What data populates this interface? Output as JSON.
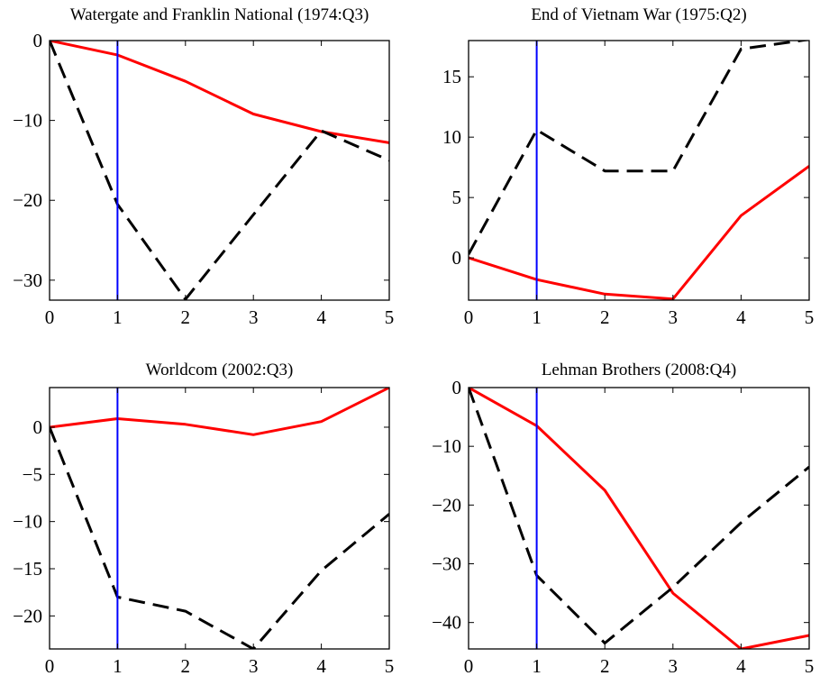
{
  "chart_data": [
    {
      "type": "line",
      "title": "Watergate and Franklin National (1974:Q3)",
      "x": [
        0,
        1,
        2,
        3,
        4,
        5
      ],
      "xlim": [
        0,
        5
      ],
      "ylim": [
        -32.5,
        0
      ],
      "xticks": [
        0,
        1,
        2,
        3,
        4,
        5
      ],
      "yticks": [
        0,
        -10,
        -20,
        -30
      ],
      "vline_x": 1,
      "series": [
        {
          "style": "solid",
          "color": "#ff0000",
          "values": [
            0,
            -1.8,
            -5.1,
            -9.2,
            -11.4,
            -12.8
          ]
        },
        {
          "style": "dashed",
          "color": "#000000",
          "values": [
            0,
            -20.5,
            -32.4,
            -21.8,
            -11.3,
            -15.0
          ]
        }
      ]
    },
    {
      "type": "line",
      "title": "End of Vietnam War (1975:Q2)",
      "x": [
        0,
        1,
        2,
        3,
        4,
        5
      ],
      "xlim": [
        0,
        5
      ],
      "ylim": [
        -3.5,
        18
      ],
      "xticks": [
        0,
        1,
        2,
        3,
        4,
        5
      ],
      "yticks": [
        0,
        5,
        10,
        15
      ],
      "vline_x": 1,
      "series": [
        {
          "style": "solid",
          "color": "#ff0000",
          "values": [
            0,
            -1.8,
            -3.0,
            -3.4,
            3.5,
            7.6
          ]
        },
        {
          "style": "dashed",
          "color": "#000000",
          "values": [
            0.3,
            10.6,
            7.2,
            7.2,
            17.3,
            18.1
          ]
        }
      ]
    },
    {
      "type": "line",
      "title": "Worldcom (2002:Q3)",
      "x": [
        0,
        1,
        2,
        3,
        4,
        5
      ],
      "xlim": [
        0,
        5
      ],
      "ylim": [
        -23.5,
        4.2
      ],
      "xticks": [
        0,
        1,
        2,
        3,
        4,
        5
      ],
      "yticks": [
        0,
        -5,
        -10,
        -15,
        -20
      ],
      "vline_x": 1,
      "series": [
        {
          "style": "solid",
          "color": "#ff0000",
          "values": [
            0,
            0.9,
            0.3,
            -0.8,
            0.6,
            4.2
          ]
        },
        {
          "style": "dashed",
          "color": "#000000",
          "values": [
            0,
            -18.0,
            -19.5,
            -23.5,
            -15.2,
            -9.2
          ]
        }
      ]
    },
    {
      "type": "line",
      "title": "Lehman Brothers (2008:Q4)",
      "x": [
        0,
        1,
        2,
        3,
        4,
        5
      ],
      "xlim": [
        0,
        5
      ],
      "ylim": [
        -44.5,
        0
      ],
      "xticks": [
        0,
        1,
        2,
        3,
        4,
        5
      ],
      "yticks": [
        0,
        -10,
        -20,
        -30,
        -40
      ],
      "vline_x": 1,
      "series": [
        {
          "style": "solid",
          "color": "#ff0000",
          "values": [
            0,
            -6.5,
            -17.5,
            -35.0,
            -44.5,
            -42.2
          ]
        },
        {
          "style": "dashed",
          "color": "#000000",
          "values": [
            0,
            -32.0,
            -43.5,
            -34.0,
            -23.0,
            -13.5
          ]
        }
      ]
    }
  ]
}
